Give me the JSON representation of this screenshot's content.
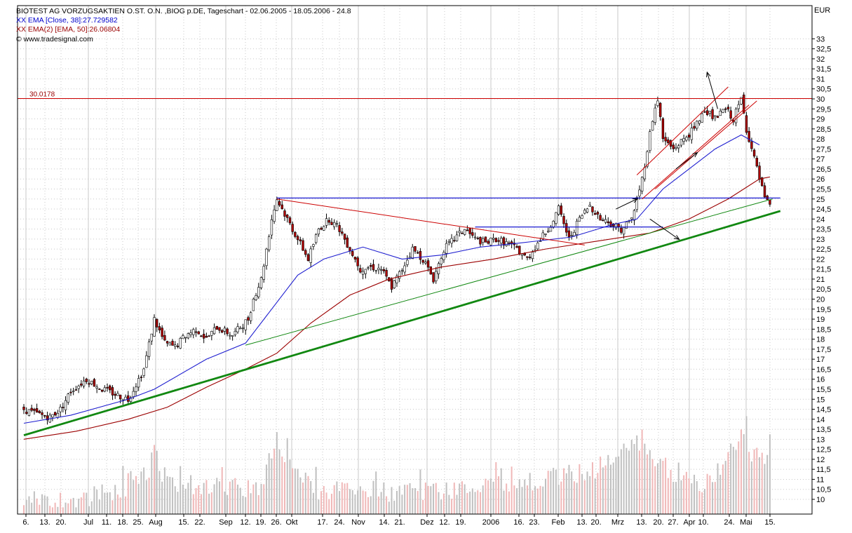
{
  "header": {
    "title": "BIOTEST AG VORZUGSAKTIEN O.ST. O.N. ,BIOG p.DE, Tageschart - 02.06.2005 - 18.05.2006 - 24.8",
    "ema38": "XX EMA [Close, 38]:27.729582",
    "ema50": "XX EMA(2) [EMA, 50]:26.06804",
    "source": "© www.tradesignal.com",
    "unit": "EUR"
  },
  "colors": {
    "grid": "#c8c8c8",
    "ema38": "#1f1fd0",
    "ema50": "#9b0000",
    "resistance": "#cc0000",
    "support": "#118811",
    "hline": "#0000cc",
    "volume": "#c0c0c0",
    "volume_down": "#f0b8b8",
    "candle_up": "#ffffff",
    "candle_down": "#b00000"
  },
  "chart_data": {
    "type": "candlestick",
    "y_unit": "EUR",
    "ylim": [
      9.5,
      33.5
    ],
    "y_ticks": [
      "33",
      "32,5",
      "32",
      "31,5",
      "31",
      "30,5",
      "30",
      "29,5",
      "29",
      "28,5",
      "28",
      "27,5",
      "27",
      "26,5",
      "26",
      "25,5",
      "25",
      "24,5",
      "24",
      "23,5",
      "23",
      "22,5",
      "22",
      "21,5",
      "21",
      "20,5",
      "20",
      "19,5",
      "19",
      "18,5",
      "18",
      "17,5",
      "17",
      "16,5",
      "16",
      "15,5",
      "15",
      "14,5",
      "14",
      "13,5",
      "13",
      "12,5",
      "12",
      "11,5",
      "11",
      "10,5",
      "10"
    ],
    "x_labels": [
      "6.",
      "13.",
      "20.",
      "Jul",
      "11.",
      "18.",
      "25.",
      "Aug",
      "15.",
      "22.",
      "Sep",
      "12.",
      "19.",
      "26.",
      "Okt",
      "17.",
      "24.",
      "Nov",
      "14.",
      "21.",
      "Dez",
      "12.",
      "19.",
      "2006",
      "16.",
      "23.",
      "Feb",
      "13.",
      "20.",
      "Mrz",
      "13.",
      "20.",
      "27.",
      "Apr",
      "10.",
      "24.",
      "Mai",
      "15."
    ],
    "vertical_grid_labels": [
      "6.",
      "Jul",
      "Aug",
      "Sep",
      "Okt",
      "Nov",
      "Dez",
      "2006",
      "Feb",
      "Mrz",
      "Apr",
      "Mai"
    ],
    "grid": true,
    "resistance_level": {
      "value": 30.0178,
      "label": "30.0178"
    },
    "close_path": [
      [
        0,
        14.5
      ],
      [
        4,
        14.3
      ],
      [
        10,
        14.1
      ],
      [
        14,
        14.5
      ],
      [
        18,
        15.4
      ],
      [
        24,
        16.0
      ],
      [
        30,
        15.5
      ],
      [
        36,
        15.2
      ],
      [
        40,
        15.0
      ],
      [
        46,
        16.5
      ],
      [
        50,
        19.0
      ],
      [
        54,
        17.8
      ],
      [
        58,
        17.6
      ],
      [
        62,
        18.2
      ],
      [
        66,
        18.5
      ],
      [
        70,
        18.0
      ],
      [
        74,
        18.6
      ],
      [
        80,
        18.2
      ],
      [
        86,
        19.0
      ],
      [
        88,
        20.0
      ],
      [
        91,
        21.0
      ],
      [
        95,
        24.0
      ],
      [
        97,
        25.0
      ],
      [
        101,
        24.0
      ],
      [
        105,
        23.0
      ],
      [
        109,
        22.0
      ],
      [
        113,
        23.5
      ],
      [
        117,
        24.0
      ],
      [
        121,
        23.5
      ],
      [
        125,
        22.5
      ],
      [
        129,
        21.5
      ],
      [
        133,
        21.6
      ],
      [
        137,
        21.5
      ],
      [
        141,
        20.6
      ],
      [
        145,
        21.5
      ],
      [
        149,
        22.5
      ],
      [
        153,
        22.0
      ],
      [
        157,
        21.0
      ],
      [
        161,
        22.5
      ],
      [
        165,
        23.0
      ],
      [
        169,
        23.5
      ],
      [
        173,
        23.0
      ],
      [
        177,
        22.8
      ],
      [
        181,
        23.0
      ],
      [
        185,
        22.8
      ],
      [
        189,
        22.5
      ],
      [
        193,
        22.0
      ],
      [
        197,
        22.8
      ],
      [
        201,
        23.5
      ],
      [
        205,
        24.5
      ],
      [
        209,
        23.0
      ],
      [
        213,
        24.0
      ],
      [
        217,
        24.7
      ],
      [
        221,
        24.0
      ],
      [
        225,
        23.8
      ],
      [
        229,
        23.5
      ],
      [
        233,
        24.0
      ],
      [
        237,
        26.0
      ],
      [
        239,
        27.5
      ],
      [
        241,
        29.0
      ],
      [
        243,
        30.0
      ],
      [
        245,
        28.0
      ],
      [
        249,
        27.5
      ],
      [
        253,
        28.0
      ],
      [
        257,
        28.5
      ],
      [
        261,
        29.5
      ],
      [
        265,
        29.0
      ],
      [
        269,
        29.5
      ],
      [
        272,
        29.0
      ],
      [
        275,
        30.0
      ],
      [
        277,
        28.5
      ],
      [
        279,
        27.5
      ],
      [
        281,
        26.5
      ],
      [
        284,
        25.0
      ],
      [
        286,
        24.6
      ]
    ],
    "volume_path": [
      [
        0,
        10.2
      ],
      [
        20,
        10.5
      ],
      [
        40,
        11.0
      ],
      [
        50,
        12.0
      ],
      [
        60,
        11.3
      ],
      [
        90,
        11.0
      ],
      [
        97,
        13.5
      ],
      [
        101,
        12.5
      ],
      [
        110,
        11.0
      ],
      [
        150,
        10.8
      ],
      [
        200,
        11.5
      ],
      [
        220,
        12.0
      ],
      [
        237,
        13.5
      ],
      [
        241,
        12.5
      ],
      [
        260,
        11.0
      ],
      [
        270,
        12.5
      ],
      [
        275,
        14.0
      ],
      [
        282,
        12.0
      ],
      [
        286,
        13.5
      ]
    ],
    "series": [
      {
        "name": "XX EMA [Close, 38]",
        "last": 27.729582,
        "points": [
          [
            0,
            13.8
          ],
          [
            18,
            14.2
          ],
          [
            40,
            15.0
          ],
          [
            50,
            15.5
          ],
          [
            70,
            17.0
          ],
          [
            85,
            17.8
          ],
          [
            95,
            19.5
          ],
          [
            105,
            21.2
          ],
          [
            115,
            22.0
          ],
          [
            130,
            22.6
          ],
          [
            145,
            22.0
          ],
          [
            160,
            22.2
          ],
          [
            175,
            22.6
          ],
          [
            190,
            22.8
          ],
          [
            210,
            23.1
          ],
          [
            225,
            23.7
          ],
          [
            235,
            24.0
          ],
          [
            245,
            25.5
          ],
          [
            255,
            26.5
          ],
          [
            265,
            27.5
          ],
          [
            275,
            28.2
          ],
          [
            282,
            27.7
          ]
        ]
      },
      {
        "name": "XX EMA(2) [EMA, 50]",
        "last": 26.06804,
        "points": [
          [
            0,
            13.0
          ],
          [
            20,
            13.4
          ],
          [
            40,
            14.0
          ],
          [
            55,
            14.6
          ],
          [
            70,
            15.6
          ],
          [
            85,
            16.5
          ],
          [
            97,
            17.3
          ],
          [
            110,
            18.8
          ],
          [
            125,
            20.2
          ],
          [
            140,
            21.0
          ],
          [
            160,
            21.6
          ],
          [
            180,
            22.0
          ],
          [
            200,
            22.5
          ],
          [
            220,
            22.9
          ],
          [
            240,
            23.3
          ],
          [
            255,
            24.0
          ],
          [
            270,
            25.0
          ],
          [
            282,
            26.0
          ],
          [
            286,
            26.1
          ]
        ]
      }
    ],
    "trendlines": [
      {
        "kind": "support_bold",
        "from": [
          0,
          13.2
        ],
        "to": [
          290,
          24.4
        ]
      },
      {
        "kind": "support_thin",
        "from": [
          85,
          17.7
        ],
        "to": [
          287,
          25.0
        ]
      },
      {
        "kind": "resistance_down",
        "from": [
          97,
          25.0
        ],
        "to": [
          215,
          22.7
        ]
      },
      {
        "kind": "hline_blue",
        "from": [
          97,
          25.05
        ],
        "to": [
          290,
          25.05
        ]
      },
      {
        "kind": "hline_blue_short",
        "from": [
          173,
          23.6
        ],
        "to": [
          245,
          23.6
        ]
      },
      {
        "kind": "channel_upper",
        "from": [
          235,
          26.2
        ],
        "to": [
          270,
          30.6
        ]
      },
      {
        "kind": "channel_lower",
        "from": [
          237,
          25.0
        ],
        "to": [
          278,
          29.7
        ]
      },
      {
        "kind": "channel_mid",
        "from": [
          242,
          25.5
        ],
        "to": [
          281,
          29.9
        ]
      }
    ],
    "arrows": [
      {
        "from": [
          266,
          29.5
        ],
        "to": [
          262,
          31.3
        ]
      },
      {
        "from": [
          227,
          24.5
        ],
        "to": [
          235,
          25.0
        ]
      },
      {
        "from": [
          240,
          24.0
        ],
        "to": [
          251,
          23.0
        ]
      },
      {
        "from": [
          250,
          26.5
        ],
        "to": [
          258,
          27.3
        ]
      }
    ]
  }
}
